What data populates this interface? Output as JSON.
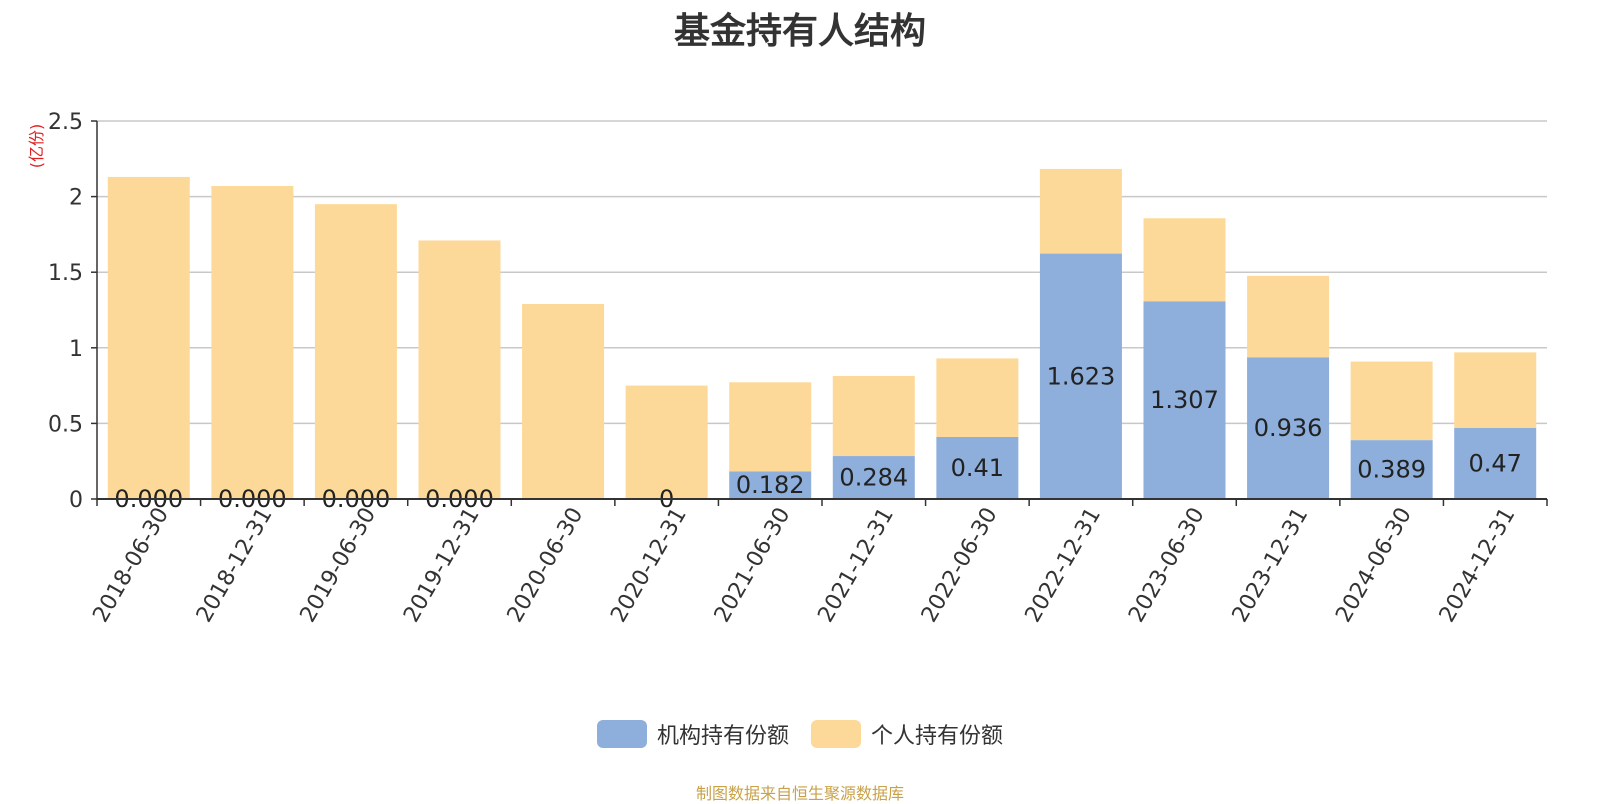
{
  "chart_data": {
    "type": "bar",
    "stacked": true,
    "title": "基金持有人结构",
    "ylabel": "(亿份)",
    "ylim": [
      0,
      2.5
    ],
    "yticks": [
      "0",
      "0.5",
      "1",
      "1.5",
      "2",
      "2.5"
    ],
    "grid": true,
    "legend_position": "bottom",
    "categories": [
      "2018-06-30",
      "2018-12-31",
      "2019-06-30",
      "2019-12-31",
      "2020-06-30",
      "2020-12-31",
      "2021-06-30",
      "2021-12-31",
      "2022-06-30",
      "2022-12-31",
      "2023-06-30",
      "2023-12-31",
      "2024-06-30",
      "2024-12-31"
    ],
    "series": [
      {
        "name": "机构持有份额",
        "color": "#8eaedb",
        "values": [
          0,
          0,
          0,
          0,
          0,
          0,
          0.182,
          0.284,
          0.41,
          1.623,
          1.307,
          0.936,
          0.389,
          0.47
        ],
        "labels": [
          "0.000",
          "0.000",
          "0.000",
          "0.000",
          "",
          "0",
          "0.182",
          "0.284",
          "0.41",
          "1.623",
          "1.307",
          "0.936",
          "0.389",
          "0.47"
        ]
      },
      {
        "name": "个人持有份额",
        "color": "#fdd999",
        "values": [
          2.13,
          2.07,
          1.95,
          1.71,
          1.29,
          0.75,
          0.59,
          0.53,
          0.52,
          0.56,
          0.55,
          0.54,
          0.52,
          0.5
        ]
      }
    ]
  },
  "footer": {
    "source": "制图数据来自恒生聚源数据库"
  }
}
